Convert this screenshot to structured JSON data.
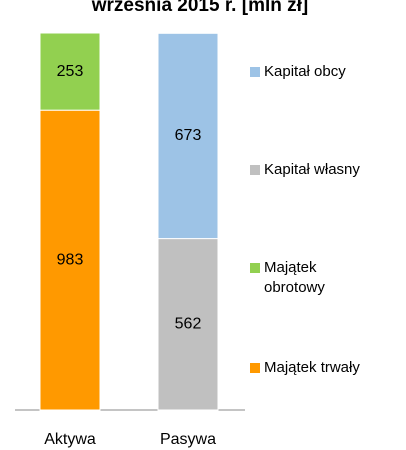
{
  "chart_data": {
    "type": "stacked_bar",
    "title": "września 2015 r. [mln zł]",
    "categories": [
      "Aktywa",
      "Pasywa"
    ],
    "series": [
      {
        "name": "Majątek trwały",
        "color": "#ff9900",
        "values": [
          983,
          null
        ]
      },
      {
        "name": "Majątek obrotowy",
        "color": "#92d050",
        "values": [
          253,
          null
        ]
      },
      {
        "name": "Kapitał własny",
        "color": "#c0c0c0",
        "values": [
          null,
          562
        ]
      },
      {
        "name": "Kapitał obcy",
        "color": "#9dc3e6",
        "values": [
          null,
          673
        ]
      }
    ],
    "legend": "right"
  }
}
